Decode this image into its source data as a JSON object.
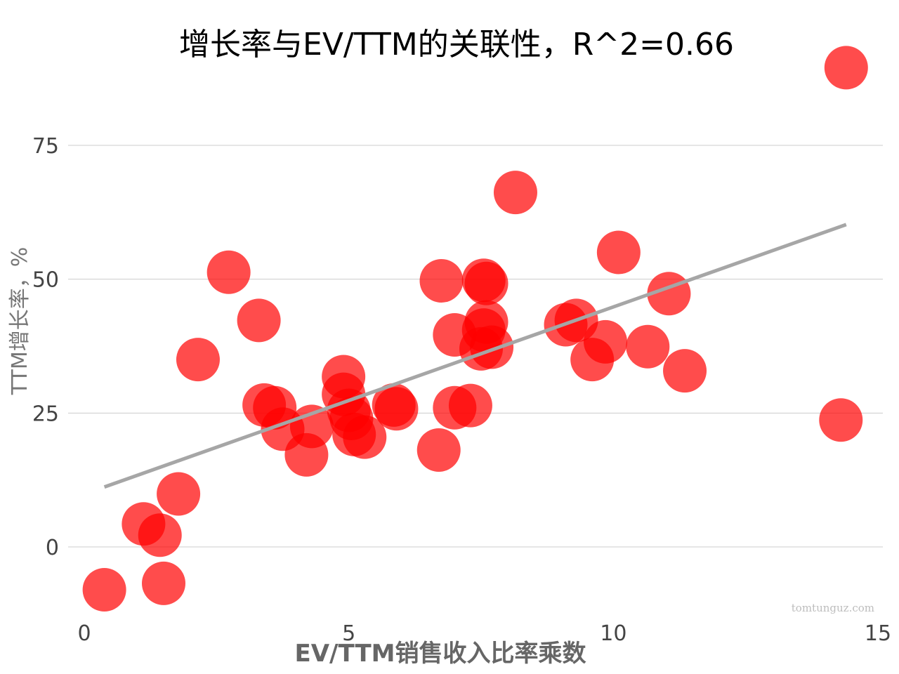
{
  "chart_data": {
    "type": "scatter",
    "title": "增长率与EV/TTM的关联性，R^2=0.66",
    "xlabel": "EV/TTM销售收入比率乘数",
    "ylabel": "TTM增长率，%",
    "xlim": [
      0,
      15
    ],
    "ylim": [
      -12,
      92
    ],
    "x_ticks": [
      0,
      5,
      10,
      15
    ],
    "x_tick_labels": [
      "0",
      "5",
      "10",
      "15"
    ],
    "y_ticks": [
      0,
      25,
      50,
      75
    ],
    "y_tick_labels": [
      "0",
      "25",
      "50",
      "75"
    ],
    "grid": "horizontal",
    "legend": "none",
    "series": [
      {
        "color": "#ff0000",
        "points": [
          {
            "x": 0.38,
            "y": -8.0
          },
          {
            "x": 1.12,
            "y": 4.3
          },
          {
            "x": 1.43,
            "y": 2.2
          },
          {
            "x": 1.5,
            "y": -6.8
          },
          {
            "x": 1.78,
            "y": 9.9
          },
          {
            "x": 2.15,
            "y": 35.0
          },
          {
            "x": 2.73,
            "y": 51.3
          },
          {
            "x": 3.3,
            "y": 42.3
          },
          {
            "x": 3.4,
            "y": 26.5
          },
          {
            "x": 3.6,
            "y": 26.0
          },
          {
            "x": 3.75,
            "y": 22.0
          },
          {
            "x": 4.3,
            "y": 22.5
          },
          {
            "x": 4.2,
            "y": 17.2
          },
          {
            "x": 4.9,
            "y": 31.8
          },
          {
            "x": 4.9,
            "y": 28.5
          },
          {
            "x": 5.0,
            "y": 25.5
          },
          {
            "x": 5.05,
            "y": 24.0
          },
          {
            "x": 5.1,
            "y": 21.0
          },
          {
            "x": 5.3,
            "y": 20.5
          },
          {
            "x": 5.85,
            "y": 26.5
          },
          {
            "x": 5.9,
            "y": 25.8
          },
          {
            "x": 6.7,
            "y": 18.1
          },
          {
            "x": 6.75,
            "y": 49.7
          },
          {
            "x": 7.0,
            "y": 39.6
          },
          {
            "x": 7.0,
            "y": 26.0
          },
          {
            "x": 7.3,
            "y": 26.4
          },
          {
            "x": 7.55,
            "y": 49.8
          },
          {
            "x": 7.6,
            "y": 49.2
          },
          {
            "x": 7.6,
            "y": 42.0
          },
          {
            "x": 7.55,
            "y": 40.5
          },
          {
            "x": 7.5,
            "y": 37.0
          },
          {
            "x": 7.7,
            "y": 37.3
          },
          {
            "x": 8.15,
            "y": 66.2
          },
          {
            "x": 9.1,
            "y": 41.5
          },
          {
            "x": 9.3,
            "y": 42.3
          },
          {
            "x": 9.6,
            "y": 35.0
          },
          {
            "x": 9.85,
            "y": 38.3
          },
          {
            "x": 10.1,
            "y": 55.0
          },
          {
            "x": 10.65,
            "y": 37.4
          },
          {
            "x": 11.05,
            "y": 47.3
          },
          {
            "x": 11.35,
            "y": 32.9
          },
          {
            "x": 14.3,
            "y": 23.7
          },
          {
            "x": 14.4,
            "y": 89.5
          }
        ]
      }
    ],
    "trendline": {
      "color": "#a6a6a6",
      "x": [
        0.38,
        14.4
      ],
      "y": [
        11.2,
        60.2
      ]
    }
  },
  "watermark": "tomtunguz.com"
}
